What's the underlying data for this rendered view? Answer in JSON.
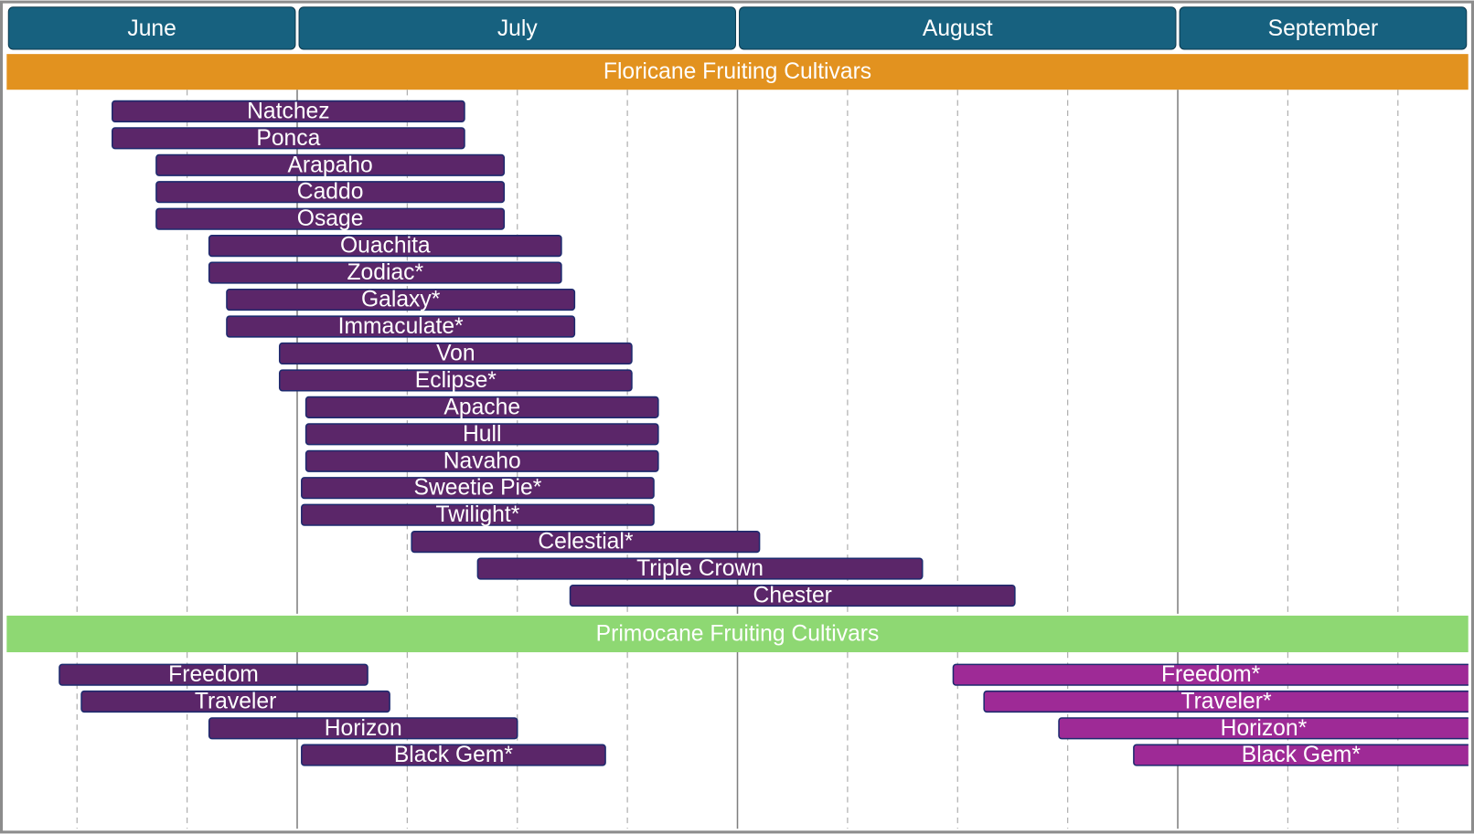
{
  "chart_data": {
    "type": "gantt",
    "categories": [
      "June",
      "July",
      "August",
      "September"
    ],
    "header_color": "#17617f",
    "xlim": [
      0.34,
      3.66
    ],
    "xticks": [
      0.5,
      0.75,
      1,
      1.25,
      1.5,
      1.75,
      2,
      2.25,
      2.5,
      2.75,
      3,
      3.25,
      3.5
    ],
    "grid": true,
    "sections": [
      {
        "title": "Floricane Fruiting Cultivars",
        "color": "#e2921f",
        "series": [
          {
            "color": "#5b2669",
            "labels": [
              "Natchez",
              "Ponca",
              "Arapaho",
              "Caddo",
              "Osage",
              "Ouachita",
              "Zodiac*",
              "Galaxy*",
              "Immaculate*",
              "Von",
              "Eclipse*",
              "Apache",
              "Hull",
              "Navaho",
              "Sweetie Pie*",
              "Twilight*",
              "Celestial*",
              "Triple Crown",
              "Chester"
            ],
            "starts": [
              0.58,
              0.58,
              0.68,
              0.68,
              0.68,
              0.8,
              0.8,
              0.84,
              0.84,
              0.96,
              0.96,
              1.02,
              1.02,
              1.02,
              1.01,
              1.01,
              1.26,
              1.41,
              1.62
            ],
            "ends": [
              1.38,
              1.38,
              1.47,
              1.47,
              1.47,
              1.6,
              1.6,
              1.63,
              1.63,
              1.76,
              1.76,
              1.82,
              1.82,
              1.82,
              1.81,
              1.81,
              2.05,
              2.42,
              2.63
            ]
          }
        ]
      },
      {
        "title": "Primocane Fruiting Cultivars",
        "color": "#8ed873",
        "series": [
          {
            "color": "#5b2669",
            "labels": [
              "Freedom",
              "Traveler",
              "Horizon",
              "Black Gem*"
            ],
            "starts": [
              0.46,
              0.51,
              0.8,
              1.01
            ],
            "ends": [
              1.16,
              1.21,
              1.5,
              1.7
            ]
          },
          {
            "color": "#9e2a96",
            "labels": [
              "Freedom*",
              "Traveler*",
              "Horizon*",
              "Black Gem*"
            ],
            "starts": [
              2.49,
              2.56,
              2.73,
              2.9
            ],
            "ends": [
              3.7,
              3.7,
              3.7,
              3.7
            ]
          }
        ]
      }
    ]
  }
}
